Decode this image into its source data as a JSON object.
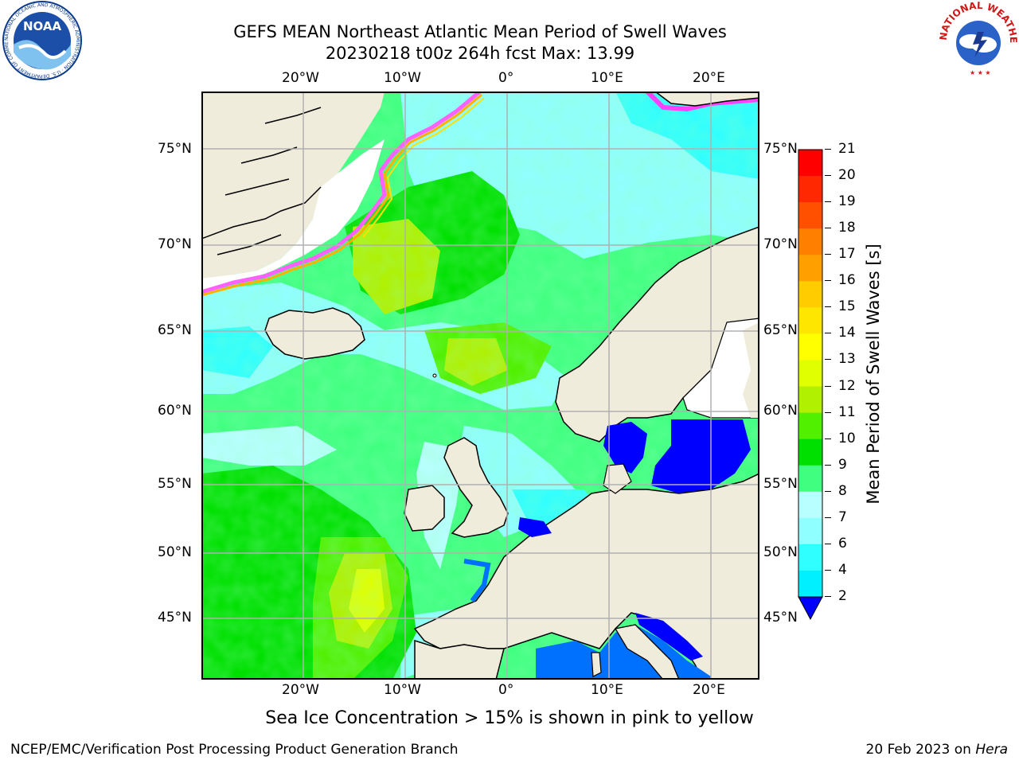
{
  "header": {
    "title_line1": "GEFS MEAN Northeast Atlantic Mean Period of Swell Waves",
    "title_line2": "20230218 t00z 264h fcst   Max: 13.99"
  },
  "logos": {
    "left": {
      "name": "NOAA",
      "ring_text": "NATIONAL OCEANIC AND ATMOSPHERIC ADMINISTRATION · U.S. DEPARTMENT OF COMMERCE"
    },
    "right": {
      "name": "National Weather Service",
      "ring_text": "NATIONAL WEATHER SERVICE"
    }
  },
  "map": {
    "lon_labels": [
      "20°W",
      "10°W",
      "0°",
      "10°E",
      "20°E"
    ],
    "lat_labels": [
      "75°N",
      "70°N",
      "65°N",
      "60°N",
      "55°N",
      "50°N",
      "45°N"
    ],
    "land_color": "#efecdc",
    "ice_color": "#ffffff",
    "grid_color": "#b0b0b0"
  },
  "colorbar": {
    "label": "Mean Period of Swell Waves [s]",
    "ticks": [
      "2",
      "4",
      "6",
      "7",
      "8",
      "9",
      "10",
      "11",
      "12",
      "13",
      "14",
      "15",
      "16",
      "17",
      "18",
      "19",
      "20",
      "21"
    ],
    "colors": [
      "#0070ff",
      "#00f0ff",
      "#30ffff",
      "#90ffff",
      "#b8ffff",
      "#40ff80",
      "#00e000",
      "#50f000",
      "#b0f000",
      "#e0ff00",
      "#ffff00",
      "#ffe600",
      "#ffcc00",
      "#ffa000",
      "#ff8000",
      "#ff5000",
      "#ff2800",
      "#ff0000"
    ],
    "extend_color": "#0000ff"
  },
  "caption": "Sea Ice Concentration > 15% is shown in pink to yellow",
  "footer": {
    "left": "NCEP/EMC/Verification Post Processing Product Generation Branch",
    "right_date": "20 Feb 2023 on ",
    "right_host": "Hera"
  }
}
